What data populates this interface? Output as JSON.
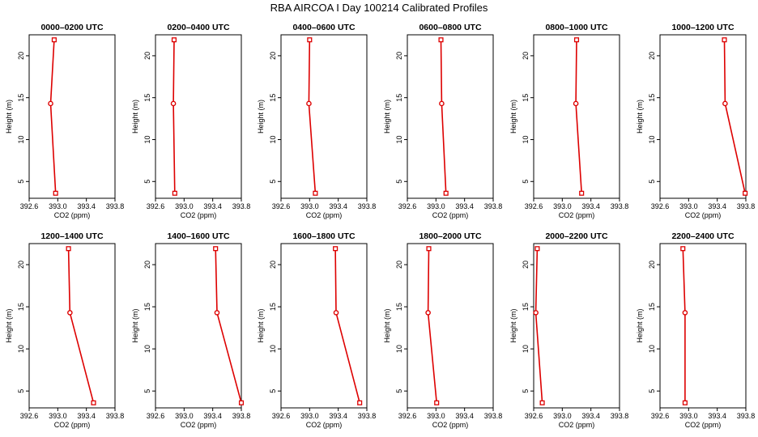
{
  "title": "RBA AIRCOA I  Day 100214  Calibrated Profiles",
  "chart_data": [
    {
      "type": "line",
      "title": "0000–0200 UTC",
      "xlabel": "CO2 (ppm)",
      "ylabel": "Height (m)",
      "xlim": [
        392.6,
        393.8
      ],
      "ylim": [
        3,
        22.5
      ],
      "xticks": [
        "392.6",
        "393.0",
        "393.4",
        "393.8"
      ],
      "yticks": [
        "5",
        "10",
        "15",
        "20"
      ],
      "x": [
        392.95,
        392.9,
        392.97
      ],
      "y": [
        21.9,
        14.3,
        3.6
      ],
      "marker": [
        "square",
        "circle",
        "square"
      ]
    },
    {
      "type": "line",
      "title": "0200–0400 UTC",
      "xlabel": "CO2 (ppm)",
      "ylabel": "Height (m)",
      "xlim": [
        392.6,
        393.8
      ],
      "ylim": [
        3,
        22.5
      ],
      "xticks": [
        "392.6",
        "393.0",
        "393.4",
        "393.8"
      ],
      "yticks": [
        "5",
        "10",
        "15",
        "20"
      ],
      "x": [
        392.86,
        392.85,
        392.87
      ],
      "y": [
        21.9,
        14.3,
        3.6
      ],
      "marker": [
        "square",
        "circle",
        "square"
      ]
    },
    {
      "type": "line",
      "title": "0400–0600 UTC",
      "xlabel": "CO2 (ppm)",
      "ylabel": "Height (m)",
      "xlim": [
        392.6,
        393.8
      ],
      "ylim": [
        3,
        22.5
      ],
      "xticks": [
        "392.6",
        "393.0",
        "393.4",
        "393.8"
      ],
      "yticks": [
        "5",
        "10",
        "15",
        "20"
      ],
      "x": [
        393.0,
        392.99,
        393.08
      ],
      "y": [
        21.9,
        14.3,
        3.6
      ],
      "marker": [
        "square",
        "circle",
        "square"
      ]
    },
    {
      "type": "line",
      "title": "0600–0800 UTC",
      "xlabel": "CO2 (ppm)",
      "ylabel": "Height (m)",
      "xlim": [
        392.6,
        393.8
      ],
      "ylim": [
        3,
        22.5
      ],
      "xticks": [
        "392.6",
        "393.0",
        "393.4",
        "393.8"
      ],
      "yticks": [
        "5",
        "10",
        "15",
        "20"
      ],
      "x": [
        393.07,
        393.08,
        393.14
      ],
      "y": [
        21.9,
        14.3,
        3.6
      ],
      "marker": [
        "square",
        "circle",
        "square"
      ]
    },
    {
      "type": "line",
      "title": "0800–1000 UTC",
      "xlabel": "CO2 (ppm)",
      "ylabel": "Height (m)",
      "xlim": [
        392.6,
        393.8
      ],
      "ylim": [
        3,
        22.5
      ],
      "xticks": [
        "392.6",
        "393.0",
        "393.4",
        "393.8"
      ],
      "yticks": [
        "5",
        "10",
        "15",
        "20"
      ],
      "x": [
        393.2,
        393.19,
        393.27
      ],
      "y": [
        21.9,
        14.3,
        3.6
      ],
      "marker": [
        "square",
        "circle",
        "square"
      ]
    },
    {
      "type": "line",
      "title": "1000–1200 UTC",
      "xlabel": "CO2 (ppm)",
      "ylabel": "Height (m)",
      "xlim": [
        392.6,
        393.8
      ],
      "ylim": [
        3,
        22.5
      ],
      "xticks": [
        "392.6",
        "393.0",
        "393.4",
        "393.8"
      ],
      "yticks": [
        "5",
        "10",
        "15",
        "20"
      ],
      "x": [
        393.5,
        393.51,
        393.79
      ],
      "y": [
        21.9,
        14.3,
        3.6
      ],
      "marker": [
        "square",
        "circle",
        "square"
      ]
    },
    {
      "type": "line",
      "title": "1200–1400 UTC",
      "xlabel": "CO2 (ppm)",
      "ylabel": "Height (m)",
      "xlim": [
        392.6,
        393.8
      ],
      "ylim": [
        3,
        22.5
      ],
      "xticks": [
        "392.6",
        "393.0",
        "393.4",
        "393.8"
      ],
      "yticks": [
        "5",
        "10",
        "15",
        "20"
      ],
      "x": [
        393.15,
        393.17,
        393.5
      ],
      "y": [
        21.9,
        14.3,
        3.6
      ],
      "marker": [
        "square",
        "circle",
        "square"
      ]
    },
    {
      "type": "line",
      "title": "1400–1600 UTC",
      "xlabel": "CO2 (ppm)",
      "ylabel": "Height (m)",
      "xlim": [
        392.6,
        393.8
      ],
      "ylim": [
        3,
        22.5
      ],
      "xticks": [
        "392.6",
        "393.0",
        "393.4",
        "393.8"
      ],
      "yticks": [
        "5",
        "10",
        "15",
        "20"
      ],
      "x": [
        393.44,
        393.46,
        393.8
      ],
      "y": [
        21.9,
        14.3,
        3.6
      ],
      "marker": [
        "square",
        "circle",
        "square"
      ]
    },
    {
      "type": "line",
      "title": "1600–1800 UTC",
      "xlabel": "CO2 (ppm)",
      "ylabel": "Height (m)",
      "xlim": [
        392.6,
        393.8
      ],
      "ylim": [
        3,
        22.5
      ],
      "xticks": [
        "392.6",
        "393.0",
        "393.4",
        "393.8"
      ],
      "yticks": [
        "5",
        "10",
        "15",
        "20"
      ],
      "x": [
        393.36,
        393.37,
        393.7
      ],
      "y": [
        21.9,
        14.3,
        3.6
      ],
      "marker": [
        "square",
        "circle",
        "square"
      ]
    },
    {
      "type": "line",
      "title": "1800–2000 UTC",
      "xlabel": "CO2 (ppm)",
      "ylabel": "Height (m)",
      "xlim": [
        392.6,
        393.8
      ],
      "ylim": [
        3,
        22.5
      ],
      "xticks": [
        "392.6",
        "393.0",
        "393.4",
        "393.8"
      ],
      "yticks": [
        "5",
        "10",
        "15",
        "20"
      ],
      "x": [
        392.9,
        392.89,
        393.01
      ],
      "y": [
        21.9,
        14.3,
        3.6
      ],
      "marker": [
        "square",
        "circle",
        "square"
      ]
    },
    {
      "type": "line",
      "title": "2000–2200 UTC",
      "xlabel": "CO2 (ppm)",
      "ylabel": "Height (m)",
      "xlim": [
        392.6,
        393.8
      ],
      "ylim": [
        3,
        22.5
      ],
      "xticks": [
        "392.6",
        "393.0",
        "393.4",
        "393.8"
      ],
      "yticks": [
        "5",
        "10",
        "15",
        "20"
      ],
      "x": [
        392.65,
        392.63,
        392.72
      ],
      "y": [
        21.9,
        14.3,
        3.6
      ],
      "marker": [
        "square",
        "circle",
        "square"
      ]
    },
    {
      "type": "line",
      "title": "2200–2400 UTC",
      "xlabel": "CO2 (ppm)",
      "ylabel": "Height (m)",
      "xlim": [
        392.6,
        393.8
      ],
      "ylim": [
        3,
        22.5
      ],
      "xticks": [
        "392.6",
        "393.0",
        "393.4",
        "393.8"
      ],
      "yticks": [
        "5",
        "10",
        "15",
        "20"
      ],
      "x": [
        392.92,
        392.95,
        392.95
      ],
      "y": [
        21.9,
        14.3,
        3.6
      ],
      "marker": [
        "square",
        "circle",
        "square"
      ]
    }
  ],
  "colors": {
    "series": "#dd0000",
    "axis": "#000000"
  }
}
